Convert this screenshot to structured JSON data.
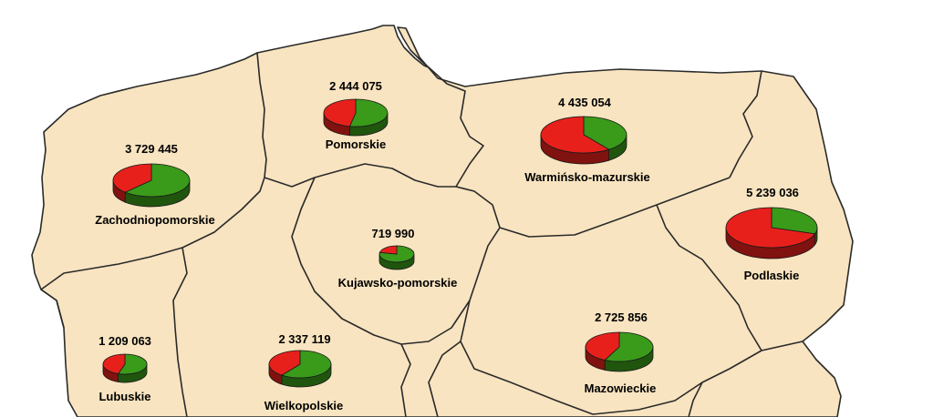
{
  "colors": {
    "land": "#f8e4c0",
    "border": "#2a2a2a",
    "slice_a": "#e8201c",
    "slice_b": "#3a9a1a"
  },
  "regions": [
    {
      "id": "zachodniopomorskie",
      "name": "Zachodniopomorskie",
      "value": "3 729 445",
      "share_a": 0.38
    },
    {
      "id": "pomorskie",
      "name": "Pomorskie",
      "value": "2 444 075",
      "share_a": 0.47
    },
    {
      "id": "warminsko-mazurskie",
      "name": "Warmińsko-mazurskie",
      "value": "4 435 054",
      "share_a": 0.6
    },
    {
      "id": "podlaskie",
      "name": "Podlaskie",
      "value": "5 239 036",
      "share_a": 0.7
    },
    {
      "id": "kujawsko-pomorskie",
      "name": "Kujawsko-pomorskie",
      "value": "719 990",
      "share_a": 0.22
    },
    {
      "id": "lubuskie",
      "name": "Lubuskie",
      "value": "1 209 063",
      "share_a": 0.45
    },
    {
      "id": "wielkopolskie",
      "name": "Wielkopolskie",
      "value": "2 337 119",
      "share_a": 0.4
    },
    {
      "id": "mazowieckie",
      "name": "Mazowieckie",
      "value": "2 725 856",
      "share_a": 0.43
    }
  ]
}
